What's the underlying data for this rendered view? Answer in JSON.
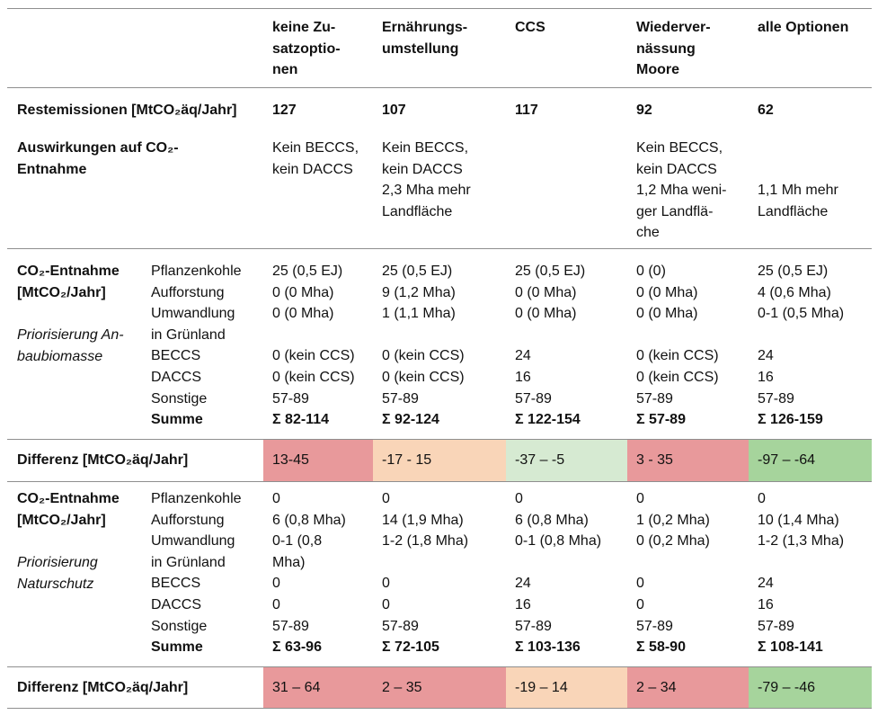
{
  "colors": {
    "red": "#e8999b",
    "orange": "#f9d5b8",
    "light_green": "#d6ead2",
    "green": "#a6d49c"
  },
  "header": {
    "columns": [
      "keine Zu-\nsatzoptio-\nnen",
      "Ernährungs-\numstellung",
      "CCS",
      "Wiederver-\nnässung\nMoore",
      "alle Optionen"
    ]
  },
  "restemissionen": {
    "label": "Restemissionen [MtCO₂äq/Jahr]",
    "values": [
      "127",
      "107",
      "117",
      "92",
      "62"
    ]
  },
  "auswirkungen": {
    "label": "Auswirkungen auf CO₂-\nEntnahme",
    "values": [
      "Kein BECCS,\nkein DACCS",
      "Kein BECCS,\nkein DACCS\n2,3 Mha mehr\nLandfläche",
      "",
      "Kein BECCS,\nkein DACCS\n1,2 Mha weni-\nger Landflä-\nche",
      "\n\n1,1 Mh mehr\nLandfläche"
    ]
  },
  "block1": {
    "label": "CO₂-Entnahme\n[MtCO₂/Jahr]",
    "note": "Priorisierung An-\nbaubiomasse",
    "items": [
      "Pflanzenkohle",
      "Aufforstung",
      "Umwandlung",
      "in Grünland",
      "BECCS",
      "DACCS",
      "Sonstige",
      "Summe"
    ],
    "columns": [
      [
        "25 (0,5 EJ)",
        "0 (0 Mha)",
        "0 (0 Mha)",
        "",
        "0 (kein CCS)",
        "0 (kein CCS)",
        "57-89",
        "Σ 82-114"
      ],
      [
        "25 (0,5 EJ)",
        "9 (1,2 Mha)",
        "1 (1,1 Mha)",
        "",
        "0 (kein CCS)",
        "0 (kein CCS)",
        "57-89",
        "Σ 92-124"
      ],
      [
        "25 (0,5 EJ)",
        "0 (0 Mha)",
        "0 (0 Mha)",
        "",
        "24",
        "16",
        "57-89",
        "Σ 122-154"
      ],
      [
        "0 (0)",
        "0 (0 Mha)",
        "0 (0 Mha)",
        "",
        "0 (kein CCS)",
        "0 (kein CCS)",
        "57-89",
        "Σ 57-89"
      ],
      [
        "25 (0,5 EJ)",
        "4 (0,6 Mha)",
        "0-1 (0,5 Mha)",
        "",
        "24",
        "16",
        "57-89",
        "Σ 126-159"
      ]
    ]
  },
  "differenz1": {
    "label": "Differenz [MtCO₂äq/Jahr]",
    "values": [
      "13-45",
      "-17 - 15",
      "-37 – -5",
      "3 - 35",
      "-97 – -64"
    ],
    "shades": [
      "red",
      "orange",
      "light_green",
      "red",
      "green"
    ]
  },
  "block2": {
    "label": "CO₂-Entnahme\n[MtCO₂/Jahr]",
    "note": "Priorisierung\nNaturschutz",
    "items": [
      "Pflanzenkohle",
      "Aufforstung",
      "Umwandlung",
      "in Grünland",
      "BECCS",
      "DACCS",
      "Sonstige",
      "Summe"
    ],
    "columns": [
      [
        "0",
        "6 (0,8 Mha)",
        "0-1 (0,8",
        "Mha)",
        "0",
        "0",
        "57-89",
        "Σ 63-96"
      ],
      [
        "0",
        "14 (1,9 Mha)",
        "1-2 (1,8 Mha)",
        "",
        "0",
        "0",
        "57-89",
        "Σ 72-105"
      ],
      [
        "0",
        "6 (0,8 Mha)",
        "0-1 (0,8 Mha)",
        "",
        "24",
        "16",
        "57-89",
        "Σ 103-136"
      ],
      [
        "0",
        "1 (0,2 Mha)",
        "0 (0,2 Mha)",
        "",
        "0",
        "0",
        "57-89",
        "Σ 58-90"
      ],
      [
        "0",
        "10 (1,4 Mha)",
        "1-2 (1,3 Mha)",
        "",
        "24",
        "16",
        "57-89",
        "Σ 108-141"
      ]
    ]
  },
  "differenz2": {
    "label": "Differenz [MtCO₂äq/Jahr]",
    "values": [
      "31 – 64",
      "2 – 35",
      "-19 – 14",
      "2 – 34",
      "-79 – -46"
    ],
    "shades": [
      "red",
      "red",
      "orange",
      "red",
      "green"
    ]
  }
}
